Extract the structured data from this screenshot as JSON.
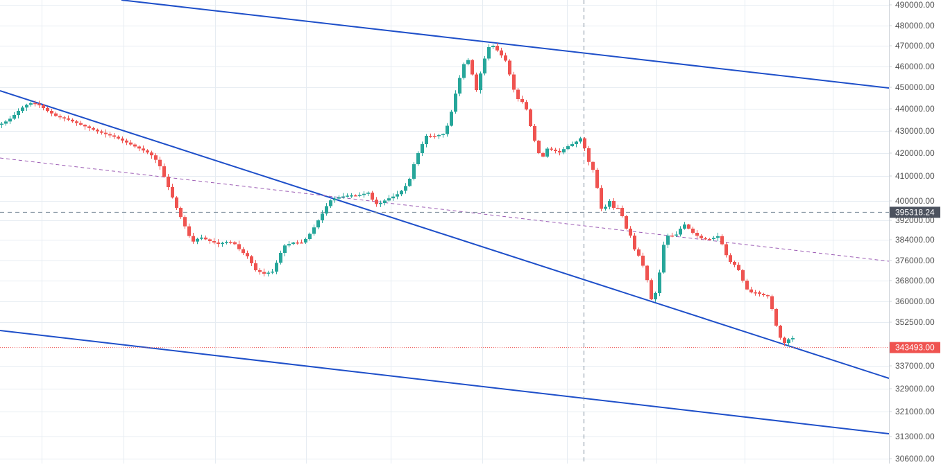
{
  "chart_data": {
    "type": "candlestick",
    "price_axis": {
      "ticks": [
        {
          "label": "490000.00",
          "value": 490000
        },
        {
          "label": "480000.00",
          "value": 480000
        },
        {
          "label": "470000.00",
          "value": 470000
        },
        {
          "label": "460000.00",
          "value": 460000
        },
        {
          "label": "450000.00",
          "value": 450000
        },
        {
          "label": "440000.00",
          "value": 440000
        },
        {
          "label": "430000.00",
          "value": 430000
        },
        {
          "label": "420000.00",
          "value": 420000
        },
        {
          "label": "410000.00",
          "value": 410000
        },
        {
          "label": "400000.00",
          "value": 400000
        },
        {
          "label": "392000.00",
          "value": 392000
        },
        {
          "label": "384000.00",
          "value": 384000
        },
        {
          "label": "376000.00",
          "value": 376000
        },
        {
          "label": "368000.00",
          "value": 368000
        },
        {
          "label": "360000.00",
          "value": 360000
        },
        {
          "label": "352500.00",
          "value": 352500
        },
        {
          "label": "337000.00",
          "value": 337000
        },
        {
          "label": "329000.00",
          "value": 329000
        },
        {
          "label": "321000.00",
          "value": 321000
        },
        {
          "label": "313000.00",
          "value": 313000
        },
        {
          "label": "306000.00",
          "value": 306000
        }
      ]
    },
    "crosshair_price": {
      "label": "395318.24",
      "value": 395318.24
    },
    "last_price": {
      "label": "343493.00",
      "value": 343493
    },
    "colors": {
      "up": "#26a69a",
      "down": "#ef5350",
      "trendline": "#1e4fc9",
      "midline": "#9c5cb4",
      "grid": "#e6ecf2",
      "crosshair": "#758696",
      "axis_text": "#4d4d4d",
      "crosshair_label_bg": "#4c525e",
      "last_price_bg": "#ef5350"
    }
  }
}
